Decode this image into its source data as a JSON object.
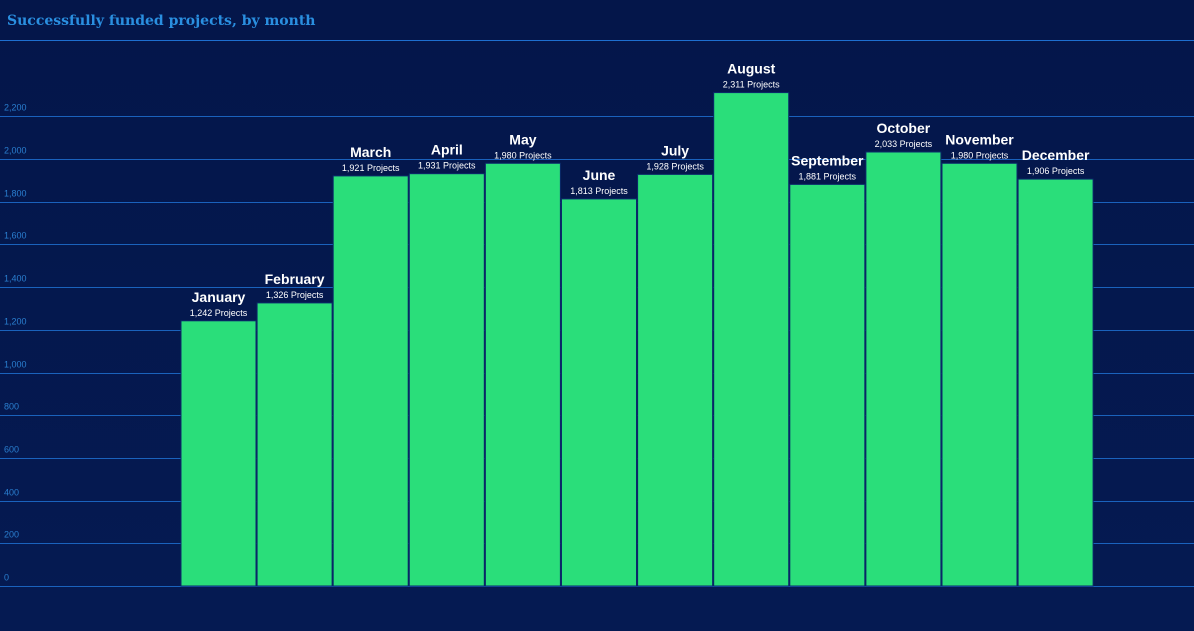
{
  "chart_data": {
    "type": "bar",
    "title": "Successfully funded projects, by month",
    "xlabel": "",
    "ylabel": "",
    "ylim": [
      0,
      2400
    ],
    "yticks": [
      0,
      200,
      400,
      600,
      800,
      1000,
      1200,
      1400,
      1600,
      1800,
      2000,
      2200
    ],
    "ytick_labels": [
      "0",
      "200",
      "400",
      "600",
      "800",
      "1,000",
      "1,200",
      "1,400",
      "1,600",
      "1,800",
      "2,000",
      "2,200"
    ],
    "grid": true,
    "categories": [
      "January",
      "February",
      "March",
      "April",
      "May",
      "June",
      "July",
      "August",
      "September",
      "October",
      "November",
      "December"
    ],
    "values": [
      1242,
      1326,
      1921,
      1931,
      1980,
      1813,
      1928,
      2311,
      1881,
      2033,
      1980,
      1906
    ],
    "value_labels": [
      "1,242 Projects",
      "1,326 Projects",
      "1,921 Projects",
      "1,931 Projects",
      "1,980 Projects",
      "1,813 Projects",
      "1,928 Projects",
      "2,311 Projects",
      "1,881 Projects",
      "2,033 Projects",
      "1,980 Projects",
      "1,906 Projects"
    ],
    "colors": {
      "bar": "#2ade7a",
      "grid": "#1e6fd0",
      "background": "#04164a",
      "title": "#2a8fe0",
      "tick": "#2a7fd0"
    }
  }
}
